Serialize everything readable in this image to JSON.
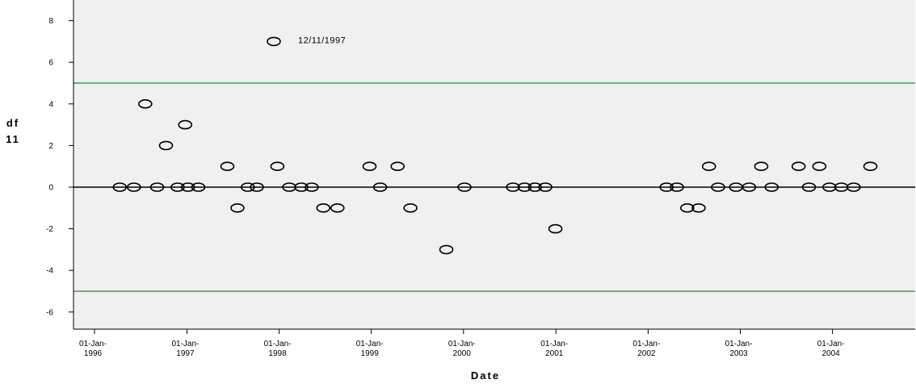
{
  "chart_data": {
    "type": "scatter",
    "title": "",
    "xlabel": "Date",
    "ylabel_lines": [
      "df",
      "11"
    ],
    "ylim": [
      -7,
      8.6
    ],
    "xlim": [
      "1995-09-01",
      "2005-01-01"
    ],
    "y_ticks": [
      -6,
      -4,
      -2,
      0,
      2,
      4,
      6,
      8
    ],
    "y_tick_labels": [
      "-6",
      "-4",
      "-2",
      "0",
      "2",
      "4",
      "6",
      "8"
    ],
    "x_ticks": [
      {
        "date": "1996-01-01",
        "line1": "01-Jan-",
        "line2": "1996"
      },
      {
        "date": "1997-01-01",
        "line1": "01-Jan-",
        "line2": "1997"
      },
      {
        "date": "1998-01-01",
        "line1": "01-Jan-",
        "line2": "1998"
      },
      {
        "date": "1999-01-01",
        "line1": "01-Jan-",
        "line2": "1999"
      },
      {
        "date": "2000-01-01",
        "line1": "01-Jan-",
        "line2": "2000"
      },
      {
        "date": "2001-01-01",
        "line1": "01-Jan-",
        "line2": "2001"
      },
      {
        "date": "2002-01-01",
        "line1": "01-Jan-",
        "line2": "2002"
      },
      {
        "date": "2003-01-01",
        "line1": "01-Jan-",
        "line2": "2003"
      },
      {
        "date": "2004-01-01",
        "line1": "01-Jan-",
        "line2": "2004"
      }
    ],
    "reference_lines": [
      {
        "y": 5,
        "color": "#3a9a5a"
      },
      {
        "y": -5,
        "color": "#3a9a5a"
      },
      {
        "y": 0,
        "color": "#000000"
      }
    ],
    "annotation": {
      "text": "12/11/1997",
      "date": "1997-12-11",
      "y": 7
    },
    "plot_background": "#f0f0f0",
    "marker": "open-ellipse",
    "grid": false,
    "points": [
      {
        "date": "1996-04-10",
        "y": 0
      },
      {
        "date": "1996-06-05",
        "y": 0
      },
      {
        "date": "1996-07-20",
        "y": 4
      },
      {
        "date": "1996-09-05",
        "y": 0
      },
      {
        "date": "1996-10-10",
        "y": 2
      },
      {
        "date": "1996-11-25",
        "y": 0
      },
      {
        "date": "1996-12-25",
        "y": 3
      },
      {
        "date": "1997-01-05",
        "y": 0
      },
      {
        "date": "1997-02-15",
        "y": 0
      },
      {
        "date": "1997-06-10",
        "y": 1
      },
      {
        "date": "1997-07-20",
        "y": -1
      },
      {
        "date": "1997-08-30",
        "y": 0
      },
      {
        "date": "1997-10-05",
        "y": 0
      },
      {
        "date": "1997-12-11",
        "y": 7
      },
      {
        "date": "1997-12-25",
        "y": 1
      },
      {
        "date": "1998-02-10",
        "y": 0
      },
      {
        "date": "1998-03-30",
        "y": 0
      },
      {
        "date": "1998-05-10",
        "y": 0
      },
      {
        "date": "1998-06-25",
        "y": -1
      },
      {
        "date": "1998-08-20",
        "y": -1
      },
      {
        "date": "1998-12-25",
        "y": 1
      },
      {
        "date": "1999-02-05",
        "y": 0
      },
      {
        "date": "1999-04-15",
        "y": 1
      },
      {
        "date": "1999-06-05",
        "y": -1
      },
      {
        "date": "1999-10-25",
        "y": -3
      },
      {
        "date": "2000-01-05",
        "y": 0
      },
      {
        "date": "2000-07-15",
        "y": 0
      },
      {
        "date": "2000-08-30",
        "y": 0
      },
      {
        "date": "2000-10-10",
        "y": 0
      },
      {
        "date": "2000-11-20",
        "y": 0
      },
      {
        "date": "2000-12-30",
        "y": -2
      },
      {
        "date": "2002-03-15",
        "y": 0
      },
      {
        "date": "2002-04-25",
        "y": 0
      },
      {
        "date": "2002-06-05",
        "y": -1
      },
      {
        "date": "2002-07-20",
        "y": -1
      },
      {
        "date": "2002-08-30",
        "y": 1
      },
      {
        "date": "2002-10-05",
        "y": 0
      },
      {
        "date": "2002-12-15",
        "y": 0
      },
      {
        "date": "2003-02-05",
        "y": 0
      },
      {
        "date": "2003-03-25",
        "y": 1
      },
      {
        "date": "2003-05-05",
        "y": 0
      },
      {
        "date": "2003-08-20",
        "y": 1
      },
      {
        "date": "2003-09-30",
        "y": 0
      },
      {
        "date": "2003-11-10",
        "y": 1
      },
      {
        "date": "2003-12-20",
        "y": 0
      },
      {
        "date": "2004-02-05",
        "y": 0
      },
      {
        "date": "2004-03-25",
        "y": 0
      },
      {
        "date": "2004-05-30",
        "y": 1
      }
    ]
  }
}
